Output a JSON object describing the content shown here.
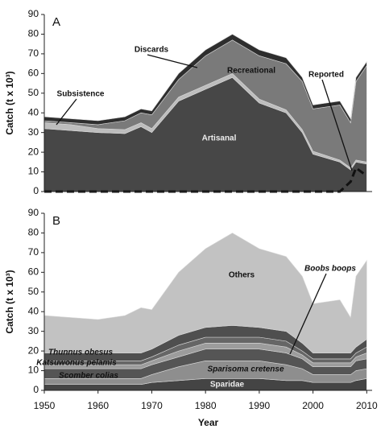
{
  "chart_data": [
    {
      "type": "area",
      "panel": "A",
      "y_label": "Catch (t x 10³)",
      "x": [
        1950,
        1955,
        1960,
        1965,
        1968,
        1970,
        1975,
        1980,
        1985,
        1990,
        1995,
        1998,
        2000,
        2005,
        2007,
        2008,
        2010
      ],
      "xlim": [
        1950,
        2011
      ],
      "ylim": [
        0,
        90
      ],
      "yticks": [
        0,
        10,
        20,
        30,
        40,
        50,
        60,
        70,
        80,
        90
      ],
      "series": [
        {
          "name": "Artisanal",
          "color": "#474747",
          "values": [
            32,
            31,
            30,
            29.5,
            33,
            30,
            46,
            52,
            58,
            45,
            40,
            30,
            19,
            15,
            11,
            15,
            14
          ]
        },
        {
          "name": "Subsistence",
          "color": "#bdbdbd",
          "values": [
            3,
            3,
            2,
            2,
            2,
            2,
            2,
            2,
            2,
            2,
            1.5,
            1.5,
            1.5,
            1,
            1,
            1,
            1
          ]
        },
        {
          "name": "Recreational",
          "color": "#7a7a7a",
          "values": [
            1,
            1,
            2,
            4.5,
            5,
            7,
            9,
            15,
            17,
            22,
            23.5,
            24.5,
            21.5,
            28,
            23,
            40,
            49
          ]
        },
        {
          "name": "Discards",
          "color": "#2e2e2e",
          "values": [
            2,
            2,
            2,
            2,
            2,
            2,
            3,
            3,
            3,
            3,
            3,
            2,
            2,
            2,
            2,
            2,
            2
          ]
        },
        {
          "name": "Reported",
          "color": "#111111",
          "kind": "dashed-line",
          "values": [
            0,
            0,
            0,
            0,
            0,
            0,
            0,
            0,
            0,
            0,
            0,
            0,
            0,
            0,
            5,
            12,
            8
          ]
        }
      ]
    },
    {
      "type": "area",
      "panel": "B",
      "y_label": "Catch (t x 10³)",
      "x_label": "Year",
      "x": [
        1950,
        1955,
        1960,
        1965,
        1968,
        1970,
        1975,
        1980,
        1985,
        1990,
        1995,
        1998,
        2000,
        2005,
        2007,
        2008,
        2010
      ],
      "xlim": [
        1950,
        2011
      ],
      "xticks": [
        1950,
        1960,
        1970,
        1980,
        1990,
        2000,
        2010
      ],
      "ylim": [
        0,
        90
      ],
      "yticks": [
        0,
        10,
        20,
        30,
        40,
        50,
        60,
        70,
        80,
        90
      ],
      "series": [
        {
          "name": "Sparidae",
          "color": "#444444",
          "values": [
            3,
            3,
            3,
            3,
            3,
            4,
            5,
            6,
            6,
            6,
            5,
            5,
            4,
            4,
            4,
            5,
            6
          ]
        },
        {
          "name": "Sparisoma cretense",
          "color": "#8e8e8e",
          "values": [
            3,
            3,
            3,
            3,
            3,
            4,
            7,
            9,
            9,
            9,
            8,
            6,
            4,
            4,
            4,
            5,
            5
          ]
        },
        {
          "name": "Scomber colias",
          "color": "#555555",
          "values": [
            5,
            5,
            5,
            5,
            5,
            5,
            5,
            6,
            6,
            6,
            6,
            5,
            4,
            4,
            4,
            5,
            5
          ]
        },
        {
          "name": "Katsuwonus pelamis",
          "color": "#9c9c9c",
          "values": [
            2,
            2,
            2,
            2,
            2,
            2,
            3,
            3,
            3,
            3,
            3,
            2,
            2,
            2,
            2,
            2,
            3
          ]
        },
        {
          "name": "Thunnus obesus",
          "color": "#666666",
          "values": [
            2,
            2,
            2,
            2,
            2,
            2,
            3,
            3,
            3,
            3,
            3,
            2,
            2,
            2,
            2,
            2,
            3
          ]
        },
        {
          "name": "Boobs boops",
          "color": "#4f4f4f",
          "values": [
            4,
            4,
            4,
            4,
            4,
            4,
            5,
            5,
            6,
            5,
            5,
            4,
            3,
            3,
            3,
            3,
            4
          ]
        },
        {
          "name": "Others",
          "color": "#c2c2c2",
          "values": [
            19,
            18,
            17,
            19,
            23,
            20,
            32,
            40,
            47,
            40,
            38,
            34,
            25,
            27,
            18,
            36,
            40
          ]
        }
      ]
    }
  ]
}
